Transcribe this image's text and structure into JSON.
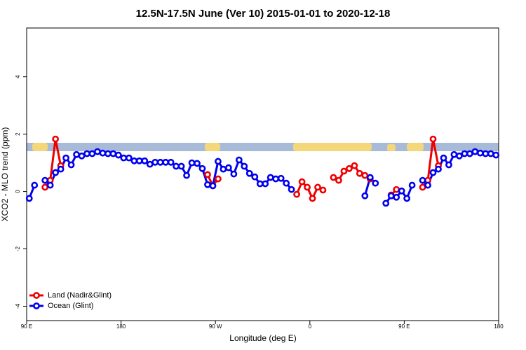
{
  "chart_data": {
    "type": "line",
    "title": "12.5N-17.5N June (Ver 10)   2015-01-01 to 2020-12-18",
    "x_label": "Longitude (deg E)",
    "y_label": "XCO2 - MLO trend (ppm)",
    "x": [
      92.5,
      97.5,
      102.5,
      107.5,
      112.5,
      117.5,
      122.5,
      127.5,
      132.5,
      137.5,
      142.5,
      147.5,
      152.5,
      157.5,
      162.5,
      167.5,
      172.5,
      177.5,
      182.5,
      187.5,
      192.5,
      197.5,
      202.5,
      207.5,
      212.5,
      217.5,
      222.5,
      227.5,
      232.5,
      237.5,
      242.5,
      247.5,
      252.5,
      257.5,
      262.5,
      267.5,
      272.5,
      277.5,
      282.5,
      287.5,
      292.5,
      297.5,
      302.5,
      307.5,
      312.5,
      317.5,
      322.5,
      327.5,
      332.5,
      337.5,
      342.5,
      347.5,
      352.5,
      357.5,
      362.5,
      367.5,
      372.5,
      377.5,
      382.5,
      387.5,
      392.5,
      397.5,
      402.5,
      407.5,
      412.5,
      417.5,
      422.5,
      427.5,
      432.5,
      437.5,
      442.5,
      447.5,
      452.5,
      457.5,
      462.5,
      467.5,
      472.5,
      477.5,
      482.5,
      487.5,
      492.5,
      497.5,
      502.5,
      507.5,
      512.5,
      517.5,
      522.5,
      527.5,
      532.5,
      537.5
    ],
    "series": [
      {
        "name": "Land (Nadir&Glint)",
        "color": "#ee0000",
        "values": [
          null,
          null,
          null,
          0.15,
          0.39,
          1.83,
          0.9,
          null,
          null,
          null,
          null,
          null,
          null,
          null,
          null,
          null,
          null,
          null,
          null,
          null,
          null,
          null,
          null,
          null,
          null,
          null,
          null,
          null,
          null,
          null,
          null,
          null,
          null,
          null,
          0.59,
          0.2,
          0.44,
          null,
          null,
          null,
          null,
          null,
          null,
          null,
          null,
          null,
          null,
          null,
          null,
          null,
          null,
          -0.1,
          0.34,
          0.15,
          -0.24,
          0.15,
          0.05,
          null,
          0.49,
          0.39,
          0.71,
          0.8,
          0.9,
          0.63,
          0.56,
          0.44,
          null,
          null,
          null,
          -0.12,
          0.07,
          null,
          null,
          null,
          null,
          0.15,
          0.39,
          1.83,
          0.9,
          null,
          null,
          null,
          null,
          null,
          null,
          null,
          null,
          null,
          null,
          null
        ]
      },
      {
        "name": "Ocean (Glint)",
        "color": "#0000ee",
        "values": [
          -0.24,
          0.22,
          null,
          0.39,
          0.22,
          0.66,
          0.78,
          1.17,
          0.93,
          1.29,
          1.24,
          1.32,
          1.32,
          1.39,
          1.34,
          1.32,
          1.32,
          1.27,
          1.17,
          1.17,
          1.07,
          1.07,
          1.07,
          0.95,
          1.02,
          1.02,
          1.02,
          1.02,
          0.88,
          0.88,
          0.56,
          1.0,
          0.98,
          0.8,
          0.24,
          0.2,
          1.05,
          0.78,
          0.83,
          0.61,
          1.1,
          0.88,
          0.63,
          0.51,
          0.27,
          0.27,
          0.49,
          0.44,
          0.46,
          0.29,
          0.07,
          null,
          null,
          null,
          null,
          null,
          null,
          null,
          null,
          null,
          null,
          null,
          null,
          null,
          -0.15,
          0.49,
          0.29,
          null,
          -0.41,
          -0.15,
          -0.2,
          0.02,
          -0.24,
          0.22,
          null,
          0.39,
          0.22,
          0.66,
          0.78,
          1.17,
          0.93,
          1.29,
          1.24,
          1.32,
          1.32,
          1.39,
          1.34,
          1.32,
          1.32,
          1.27
        ]
      }
    ],
    "xlim": [
      90,
      540
    ],
    "xticks": [
      {
        "value": 90,
        "label": "90 E"
      },
      180,
      {
        "value": 270,
        "label": "90 W"
      },
      {
        "value": 360,
        "label": "0"
      },
      {
        "value": 450,
        "label": "90 E"
      },
      {
        "value": 540,
        "label": "180"
      }
    ],
    "ylim": [
      -4.5,
      5.7
    ],
    "yticks": [
      -4,
      -2,
      0,
      2,
      4
    ],
    "legend": "bottom-left"
  }
}
